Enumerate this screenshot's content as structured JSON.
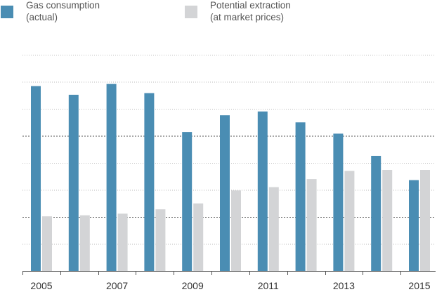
{
  "chart_data": {
    "type": "bar",
    "title": "",
    "xlabel": "",
    "ylabel": "",
    "categories": [
      "2005",
      "2006",
      "2007",
      "2008",
      "2009",
      "2010",
      "2011",
      "2012",
      "2013",
      "2014",
      "2015"
    ],
    "x_tick_labels": [
      "2005",
      "",
      "2007",
      "",
      "2009",
      "",
      "2011",
      "",
      "2013",
      "",
      "2015"
    ],
    "series": [
      {
        "name_lines": [
          "Gas consumption",
          "(actual)"
        ],
        "color": "#4a8db3",
        "values": [
          34.2,
          32.6,
          34.6,
          32.9,
          25.7,
          28.8,
          29.5,
          27.5,
          25.4,
          21.3,
          16.8
        ]
      },
      {
        "name_lines": [
          "Potential extraction",
          "(at market prices)"
        ],
        "color": "#d3d4d6",
        "values": [
          10.1,
          10.3,
          10.6,
          11.4,
          12.5,
          14.9,
          15.5,
          17.0,
          18.5,
          18.7,
          18.7
        ]
      }
    ],
    "ylim": [
      0,
      40
    ],
    "y_gridlines": [
      5,
      10,
      15,
      20,
      25,
      30,
      35,
      40
    ],
    "y_gridlines_emphasized": [
      10,
      25
    ],
    "legend_position": "top-left",
    "show_y_tick_labels": false
  }
}
